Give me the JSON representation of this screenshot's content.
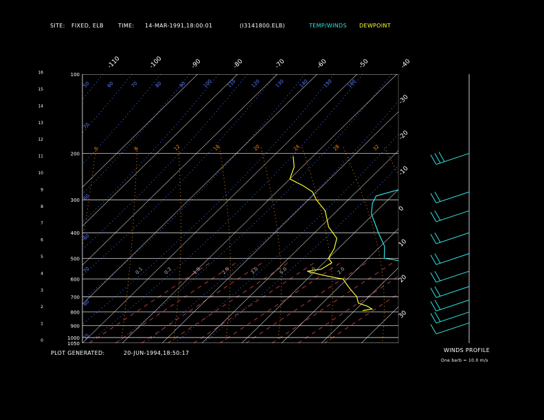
{
  "header": {
    "site_label": "SITE:",
    "site_value": "FIXED, ELB",
    "time_label": "TIME:",
    "time_value": "14-MAR-1991,18:00:01",
    "file": "(I3141800.ELB)",
    "legend_temp": "TEMP/WINDS",
    "legend_dew": "DEWPOINT"
  },
  "footer": {
    "generated_label": "PLOT GENERATED:",
    "generated_value": "20-JUN-1994,18:50:17"
  },
  "winds": {
    "title": "WINDS PROFILE",
    "note": "One barb = 10.0 m/s"
  },
  "colors": {
    "temp": "#2ee6e6",
    "dewpoint": "#ffff33",
    "grid": "#ffffff",
    "dry_adiabat": "#4d79ff",
    "moist_adiabat": "#ff8800",
    "mixing_ratio": "#c03c3c",
    "label_blue": "#5f7cff"
  },
  "chart_data": {
    "type": "line",
    "pressure_ticks": [
      "100",
      "200",
      "300",
      "400",
      "500",
      "600",
      "700",
      "800",
      "900",
      "1000",
      "1050"
    ],
    "height_ticks_km": [
      "0",
      "1",
      "2",
      "3",
      "4",
      "5",
      "6",
      "7",
      "8",
      "9",
      "10",
      "11",
      "12",
      "13",
      "14",
      "15",
      "16"
    ],
    "temp_top_labels": [
      "-110",
      "-100",
      "-90",
      "-80",
      "-70",
      "-60",
      "-50",
      "-40"
    ],
    "temp_right_labels": [
      "-30",
      "-20",
      "-10",
      "0",
      "10",
      "20",
      "30"
    ],
    "dry_adiabat_labels": [
      "50",
      "60",
      "70",
      "80",
      "90",
      "100",
      "110",
      "120",
      "130",
      "140",
      "150",
      "160",
      "70",
      "60",
      "60",
      "70",
      "60",
      "35"
    ],
    "moist_labels": [
      "5",
      "8",
      "12",
      "16",
      "20",
      "24",
      "28",
      "32"
    ],
    "mixing_labels": [
      "0.1",
      "0.2",
      "1.0",
      "2.0",
      "3.0",
      "5.0",
      "8.0",
      "2.0"
    ],
    "series": [
      {
        "name": "TEMP/WINDS",
        "points": [
          [
            -58.0,
            225
          ],
          [
            -62.0,
            243
          ],
          [
            -68.0,
            252
          ],
          [
            -74.0,
            262
          ],
          [
            -80.0,
            275
          ],
          [
            -84.0,
            290
          ],
          [
            -83.0,
            310
          ],
          [
            -80.5,
            340
          ],
          [
            -74.0,
            400
          ],
          [
            -69.0,
            450
          ],
          [
            -66.0,
            500
          ],
          [
            -58.0,
            520
          ],
          [
            -53.0,
            580
          ],
          [
            -53.0,
            640
          ],
          [
            -42.0,
            700
          ],
          [
            -43.0,
            735
          ],
          [
            -38.0,
            780
          ]
        ]
      },
      {
        "name": "DEWPOINT",
        "points": [
          [
            -115.0,
            205
          ],
          [
            -112.0,
            225
          ],
          [
            -110.0,
            250
          ],
          [
            -105.0,
            265
          ],
          [
            -101.0,
            280
          ],
          [
            -98.0,
            300
          ],
          [
            -93.0,
            330
          ],
          [
            -88.0,
            380
          ],
          [
            -83.0,
            420
          ],
          [
            -81.0,
            460
          ],
          [
            -80.0,
            500
          ],
          [
            -78.0,
            520
          ],
          [
            -79.0,
            550
          ],
          [
            -82.0,
            560
          ],
          [
            -77.0,
            580
          ],
          [
            -71.0,
            600
          ],
          [
            -67.0,
            650
          ],
          [
            -63.0,
            700
          ],
          [
            -61.0,
            740
          ],
          [
            -58.0,
            760
          ],
          [
            -56.0,
            780
          ],
          [
            -58.0,
            790
          ]
        ]
      }
    ],
    "wind_barbs": [
      {
        "pressure": 200,
        "speed_ms": 30
      },
      {
        "pressure": 280,
        "speed_ms": 20
      },
      {
        "pressure": 330,
        "speed_ms": 20
      },
      {
        "pressure": 400,
        "speed_ms": 20
      },
      {
        "pressure": 480,
        "speed_ms": 20
      },
      {
        "pressure": 560,
        "speed_ms": 20
      },
      {
        "pressure": 640,
        "speed_ms": 20
      },
      {
        "pressure": 720,
        "speed_ms": 20
      },
      {
        "pressure": 800,
        "speed_ms": 20
      },
      {
        "pressure": 880,
        "speed_ms": 10
      }
    ]
  }
}
